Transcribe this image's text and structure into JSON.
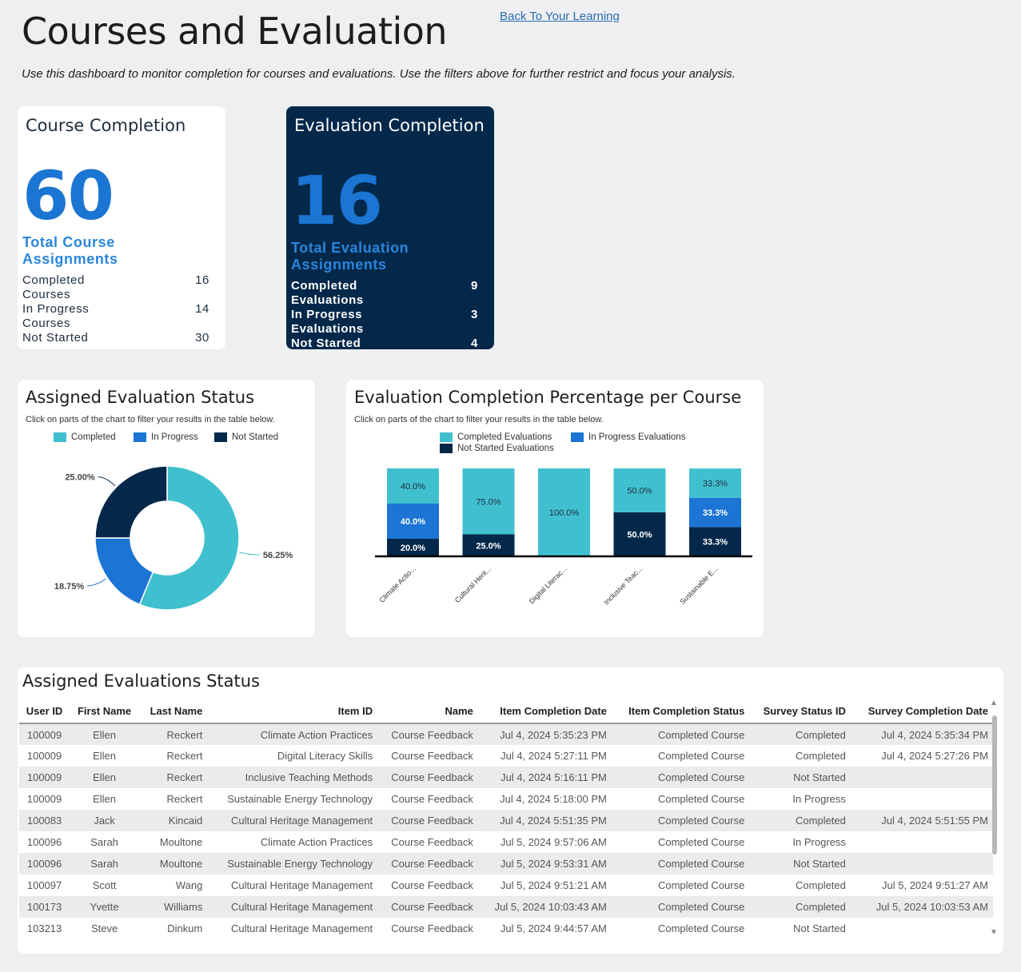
{
  "header": {
    "title": "Courses and Evaluation",
    "back_link": "Back To Your Learning",
    "description": "Use this dashboard to monitor completion for courses and evaluations. Use the filters above for further restrict and focus your analysis."
  },
  "course_kpi": {
    "title": "Course Completion",
    "total": "60",
    "total_label": "Total Course Assignments",
    "rows": [
      {
        "label": "Completed Courses",
        "value": "16"
      },
      {
        "label": "In Progress Courses",
        "value": "14"
      },
      {
        "label": "Not Started",
        "value": "30"
      }
    ]
  },
  "eval_kpi": {
    "title": "Evaluation Completion",
    "total": "16",
    "total_label": "Total Evaluation Assignments",
    "rows": [
      {
        "label": "Completed Evaluations",
        "value": "9"
      },
      {
        "label": "In Progress Evaluations",
        "value": "3"
      },
      {
        "label": "Not Started",
        "value": "4"
      }
    ]
  },
  "colors": {
    "completed": "#40c0cf",
    "in_progress": "#1c74d4",
    "not_started": "#04284a"
  },
  "donut": {
    "title": "Assigned Evaluation Status",
    "hint": "Click on parts of the chart to filter your results in the table below.",
    "legend": [
      "Completed",
      "In Progress",
      "Not Started"
    ],
    "chart_data": {
      "type": "pie",
      "series": [
        {
          "name": "Completed",
          "value": 56.25,
          "label": "56.25%"
        },
        {
          "name": "In Progress",
          "value": 18.75,
          "label": "18.75%"
        },
        {
          "name": "Not Started",
          "value": 25.0,
          "label": "25.00%"
        }
      ]
    }
  },
  "stacked": {
    "title": "Evaluation Completion Percentage per Course",
    "hint": "Click on parts of the chart to filter your results in the table below.",
    "legend": [
      "Completed Evaluations",
      "In Progress Evaluations",
      "Not Started Evaluations"
    ],
    "chart_data": {
      "type": "bar",
      "stacked": true,
      "categories": [
        "Climate Actio...",
        "Cultural Herit...",
        "Digital Literac...",
        "Inclusive Teac...",
        "Sustainable E..."
      ],
      "series": [
        {
          "name": "Completed Evaluations",
          "values": [
            40.0,
            75.0,
            100.0,
            50.0,
            33.3
          ],
          "labels": [
            "40.0%",
            "75.0%",
            "100.0%",
            "50.0%",
            "33.3%"
          ]
        },
        {
          "name": "In Progress Evaluations",
          "values": [
            40.0,
            0,
            0,
            0,
            33.3
          ],
          "labels": [
            "40.0%",
            "",
            "",
            "",
            "33.3%"
          ]
        },
        {
          "name": "Not Started Evaluations",
          "values": [
            20.0,
            25.0,
            0,
            50.0,
            33.3
          ],
          "labels": [
            "20.0%",
            "25.0%",
            "",
            "50.0%",
            "33.3%"
          ]
        }
      ],
      "ylim": [
        0,
        100
      ]
    }
  },
  "table": {
    "title": "Assigned Evaluations Status",
    "columns": [
      "User ID",
      "First Name",
      "Last Name",
      "Item ID",
      "Name",
      "Item Completion Date",
      "Item Completion Status",
      "Survey Status ID",
      "Survey Completion Date"
    ],
    "rows": [
      [
        "100009",
        "Ellen",
        "Reckert",
        "Climate Action Practices",
        "Course Feedback",
        "Jul 4, 2024 5:35:23 PM",
        "Completed Course",
        "Completed",
        "Jul 4, 2024 5:35:34 PM"
      ],
      [
        "100009",
        "Ellen",
        "Reckert",
        "Digital Literacy Skills",
        "Course Feedback",
        "Jul 4, 2024 5:27:11 PM",
        "Completed Course",
        "Completed",
        "Jul 4, 2024 5:27:26 PM"
      ],
      [
        "100009",
        "Ellen",
        "Reckert",
        "Inclusive Teaching Methods",
        "Course Feedback",
        "Jul 4, 2024 5:16:11 PM",
        "Completed Course",
        "Not Started",
        ""
      ],
      [
        "100009",
        "Ellen",
        "Reckert",
        "Sustainable Energy Technology",
        "Course Feedback",
        "Jul 4, 2024 5:18:00 PM",
        "Completed Course",
        "In Progress",
        ""
      ],
      [
        "100083",
        "Jack",
        "Kincaid",
        "Cultural Heritage Management",
        "Course Feedback",
        "Jul 4, 2024 5:51:35 PM",
        "Completed Course",
        "Completed",
        "Jul 4, 2024 5:51:55 PM"
      ],
      [
        "100096",
        "Sarah",
        "Moultone",
        "Climate Action Practices",
        "Course Feedback",
        "Jul 5, 2024 9:57:06 AM",
        "Completed Course",
        "In Progress",
        ""
      ],
      [
        "100096",
        "Sarah",
        "Moultone",
        "Sustainable Energy Technology",
        "Course Feedback",
        "Jul 5, 2024 9:53:31 AM",
        "Completed Course",
        "Not Started",
        ""
      ],
      [
        "100097",
        "Scott",
        "Wang",
        "Cultural Heritage Management",
        "Course Feedback",
        "Jul 5, 2024 9:51:21 AM",
        "Completed Course",
        "Completed",
        "Jul 5, 2024 9:51:27 AM"
      ],
      [
        "100173",
        "Yvette",
        "Williams",
        "Cultural Heritage Management",
        "Course Feedback",
        "Jul 5, 2024 10:03:43 AM",
        "Completed Course",
        "Completed",
        "Jul 5, 2024 10:03:53 AM"
      ],
      [
        "103213",
        "Steve",
        "Dinkum",
        "Cultural Heritage Management",
        "Course Feedback",
        "Jul 5, 2024 9:44:57 AM",
        "Completed Course",
        "Not Started",
        ""
      ]
    ]
  }
}
